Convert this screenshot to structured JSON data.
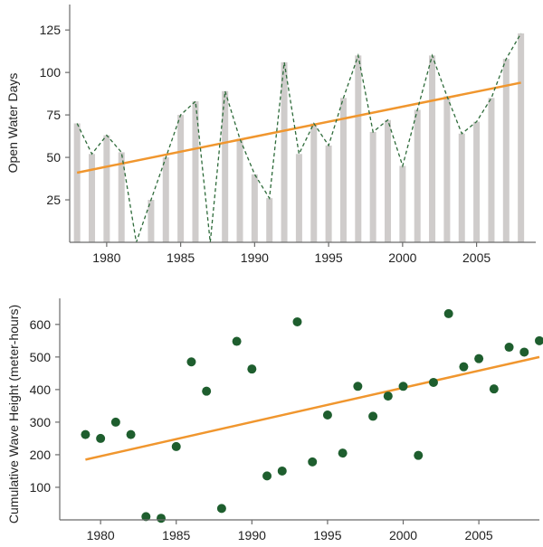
{
  "chart_data": [
    {
      "type": "bar",
      "ylabel": "Open Water Days",
      "xlim": [
        1977.5,
        2009.0
      ],
      "ylim": [
        0,
        140
      ],
      "x_ticks": [
        "1980",
        "1985",
        "1990",
        "1995",
        "2000",
        "2005"
      ],
      "y_ticks": [
        "25",
        "50",
        "75",
        "100",
        "125"
      ],
      "x": [
        1978,
        1979,
        1980,
        1981,
        1982,
        1983,
        1984,
        1985,
        1986,
        1987,
        1988,
        1989,
        1990,
        1991,
        1992,
        1993,
        1994,
        1995,
        1996,
        1997,
        1998,
        1999,
        2000,
        2001,
        2002,
        2003,
        2004,
        2005,
        2006,
        2007,
        2008
      ],
      "values": [
        70,
        52,
        63,
        53,
        0,
        25,
        50,
        75,
        83,
        0,
        89,
        61,
        40,
        26,
        106,
        52,
        70,
        57,
        85,
        110,
        65,
        72,
        45,
        78,
        110,
        86,
        64,
        71,
        85,
        108,
        123
      ],
      "trend": {
        "x": [
          1978,
          2008
        ],
        "y": [
          41,
          94
        ]
      },
      "grid": false,
      "colors": {
        "bars": "#cfcccb",
        "line": "#2e6b3a",
        "trend": "#f0962e"
      }
    },
    {
      "type": "scatter",
      "ylabel": "Cumulative Wave Height (meter-hours)",
      "xlim": [
        1977.3,
        2009.0
      ],
      "ylim": [
        0,
        680
      ],
      "x_ticks": [
        "1980",
        "1985",
        "1990",
        "1995",
        "2000",
        "2005"
      ],
      "y_ticks": [
        "100",
        "200",
        "300",
        "400",
        "500",
        "600"
      ],
      "x": [
        1979,
        1980,
        1981,
        1982,
        1983,
        1984,
        1985,
        1986,
        1987,
        1988,
        1989,
        1990,
        1991,
        1992,
        1993,
        1994,
        1995,
        1996,
        1997,
        1998,
        1999,
        2000,
        2001,
        2002,
        2003,
        2004,
        2005,
        2006,
        2007,
        2008,
        2009
      ],
      "y": [
        262,
        250,
        300,
        262,
        10,
        5,
        225,
        485,
        395,
        35,
        548,
        463,
        135,
        150,
        608,
        178,
        322,
        205,
        410,
        318,
        380,
        410,
        198,
        422,
        633,
        470,
        495,
        402,
        530,
        515,
        550
      ],
      "trend": {
        "x": [
          1979,
          2009
        ],
        "y": [
          185,
          500
        ]
      },
      "grid": false,
      "colors": {
        "points": "#1e5e2e",
        "trend": "#f0962e"
      }
    }
  ]
}
